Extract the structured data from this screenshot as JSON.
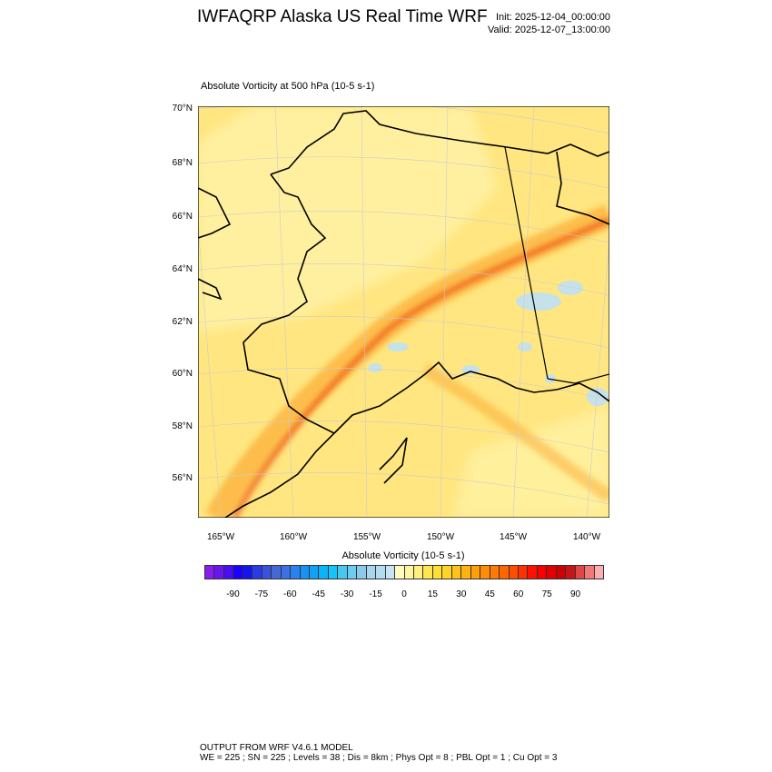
{
  "header": {
    "title": "IWFAQRP Alaska US Real Time WRF",
    "init": "Init: 2025-12-04_00:00:00",
    "valid": "Valid: 2025-12-07_13:00:00"
  },
  "plot": {
    "subtitle": "Absolute Vorticity at 500 hPa   (10-5 s-1)",
    "lat_labels": [
      "70°N",
      "68°N",
      "66°N",
      "64°N",
      "62°N",
      "60°N",
      "58°N",
      "56°N"
    ],
    "lon_labels": [
      "165°W",
      "160°W",
      "155°W",
      "150°W",
      "145°W",
      "140°W"
    ],
    "fill_colors": {
      "base": "#ffe680",
      "low": "#fff3a8",
      "band": "#fb9a1e",
      "core": "#f05a1a",
      "negative": "#bfe0f5"
    }
  },
  "colorbar": {
    "title": "Absolute Vorticity  (10-5 s-1)",
    "labels": [
      "-90",
      "-75",
      "-60",
      "-45",
      "-30",
      "-15",
      "0",
      "15",
      "30",
      "45",
      "60",
      "75",
      "90"
    ],
    "colors": [
      "#8a1cf0",
      "#6a14f2",
      "#4a0cf5",
      "#1a00ff",
      "#1414f0",
      "#2a3ae6",
      "#3a52e0",
      "#4668d6",
      "#3a72e6",
      "#2a82f0",
      "#1a92f5",
      "#12a2f5",
      "#0ab4fa",
      "#14c4fa",
      "#46c8f0",
      "#6ccdf2",
      "#8ccaec",
      "#a8d6ee",
      "#b4dcf0",
      "#c6e4f4",
      "#fffcbe",
      "#fff4a0",
      "#ffee82",
      "#ffe650",
      "#ffe030",
      "#ffd228",
      "#ffc21a",
      "#ffb210",
      "#ffa00a",
      "#ff8c06",
      "#ff7a04",
      "#ff6602",
      "#ff4e02",
      "#ff3002",
      "#ff1000",
      "#f80000",
      "#e40000",
      "#d00000",
      "#c81414",
      "#e04646",
      "#f07878",
      "#fab0b0"
    ]
  },
  "footer": {
    "line1": "OUTPUT FROM WRF V4.6.1 MODEL",
    "line2": "WE = 225 ; SN = 225 ; Levels = 38 ; Dis = 8km ; Phys Opt = 8 ; PBL Opt = 1 ; Cu Opt = 3"
  }
}
